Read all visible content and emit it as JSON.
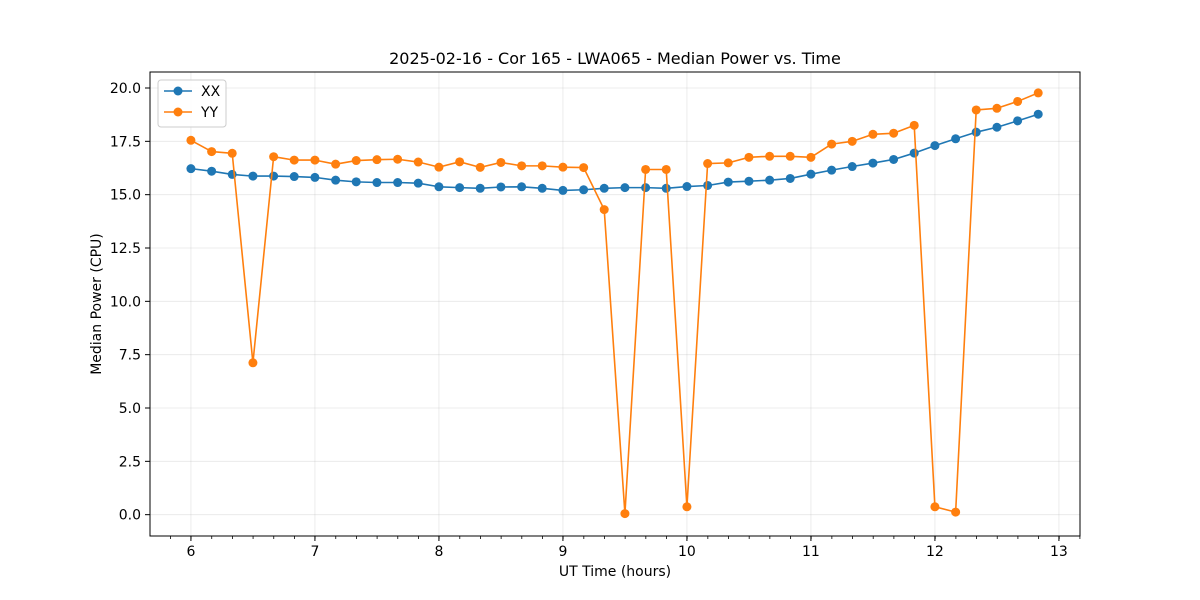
{
  "chart_data": {
    "type": "line",
    "title": "2025-02-16 - Cor 165 - LWA065 - Median Power vs. Time",
    "xlabel": "UT Time (hours)",
    "ylabel": "Median Power (CPU)",
    "xlim": [
      5.67,
      13.17
    ],
    "ylim": [
      -1.0,
      20.75
    ],
    "x_ticks": [
      6,
      7,
      8,
      9,
      10,
      11,
      12,
      13
    ],
    "x_minor_step": 0.1667,
    "y_ticks": [
      0.0,
      2.5,
      5.0,
      7.5,
      10.0,
      12.5,
      15.0,
      17.5,
      20.0
    ],
    "grid": true,
    "legend_position": "upper-left",
    "x": [
      6.0,
      6.167,
      6.333,
      6.5,
      6.667,
      6.833,
      7.0,
      7.167,
      7.333,
      7.5,
      7.667,
      7.833,
      8.0,
      8.167,
      8.333,
      8.5,
      8.667,
      8.833,
      9.0,
      9.167,
      9.333,
      9.5,
      9.667,
      9.833,
      10.0,
      10.167,
      10.333,
      10.5,
      10.667,
      10.833,
      11.0,
      11.167,
      11.333,
      11.5,
      11.667,
      11.833,
      12.0,
      12.167,
      12.333,
      12.5,
      12.667,
      12.833
    ],
    "series": [
      {
        "name": "XX",
        "color": "#1f77b4",
        "values": [
          16.22,
          16.1,
          15.95,
          15.87,
          15.87,
          15.85,
          15.81,
          15.68,
          15.6,
          15.57,
          15.57,
          15.54,
          15.37,
          15.33,
          15.3,
          15.36,
          15.37,
          15.3,
          15.2,
          15.23,
          15.3,
          15.33,
          15.33,
          15.3,
          15.38,
          15.43,
          15.59,
          15.63,
          15.68,
          15.76,
          15.96,
          16.15,
          16.32,
          16.48,
          16.65,
          16.95,
          17.3,
          17.62,
          17.93,
          18.16,
          18.46,
          18.77
        ]
      },
      {
        "name": "YY",
        "color": "#ff7f0e",
        "values": [
          17.55,
          17.02,
          16.94,
          7.12,
          16.78,
          16.62,
          16.62,
          16.43,
          16.6,
          16.64,
          16.66,
          16.53,
          16.29,
          16.54,
          16.28,
          16.51,
          16.35,
          16.35,
          16.29,
          16.27,
          14.3,
          0.05,
          16.18,
          16.18,
          0.37,
          16.46,
          16.49,
          16.75,
          16.8,
          16.8,
          16.75,
          17.37,
          17.5,
          17.83,
          17.88,
          18.25,
          0.37,
          0.12,
          18.97,
          19.05,
          19.37,
          19.77
        ]
      }
    ]
  }
}
